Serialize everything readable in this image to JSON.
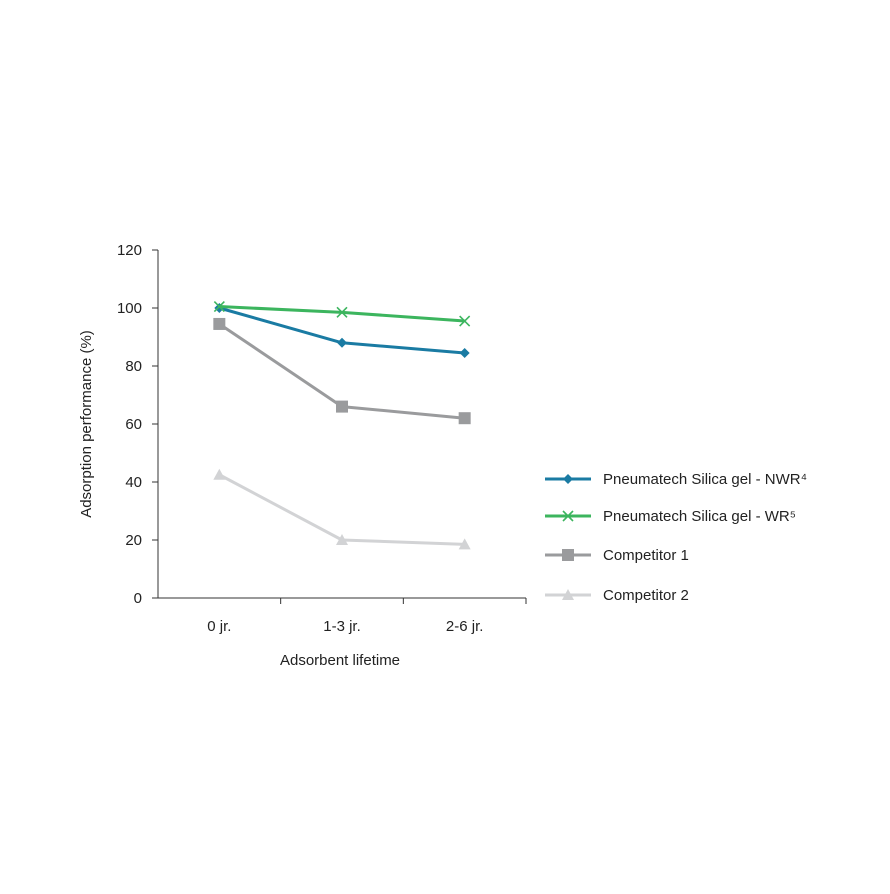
{
  "chart_data": {
    "type": "line",
    "title": "",
    "xlabel": "Adsorbent lifetime",
    "ylabel": "Adsorption performance (%)",
    "categories": [
      "0 jr.",
      "1-3 jr.",
      "2-6 jr."
    ],
    "ylim": [
      0,
      120
    ],
    "yticks": [
      "0",
      "20",
      "40",
      "60",
      "80",
      "100",
      "120"
    ],
    "grid": false,
    "legend_position": "right",
    "series": [
      {
        "name": "Pneumatech Silica gel - NWR⁴",
        "marker": "diamond",
        "color": "#1a7ba3",
        "values": [
          100,
          88,
          84.5
        ]
      },
      {
        "name": "Pneumatech Silica gel - WR⁵",
        "marker": "x",
        "color": "#3cb55e",
        "values": [
          100.5,
          98.5,
          95.5
        ]
      },
      {
        "name": "Competitor 1",
        "marker": "square",
        "color": "#9a9b9d",
        "values": [
          94.5,
          66,
          62
        ]
      },
      {
        "name": "Competitor 2",
        "marker": "triangle",
        "color": "#d2d3d5",
        "values": [
          42.5,
          20,
          18.5
        ]
      }
    ]
  }
}
